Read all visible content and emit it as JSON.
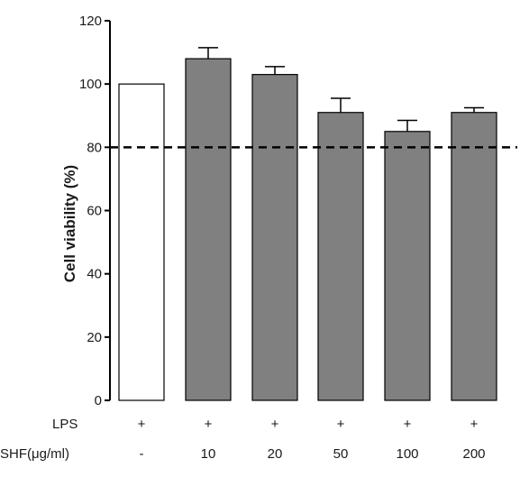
{
  "chart_data": {
    "type": "bar",
    "ylabel": "Cell viability (%)",
    "ylim": [
      0,
      120
    ],
    "yticks": [
      0,
      20,
      40,
      60,
      80,
      100,
      120
    ],
    "reference_line": {
      "y": 80,
      "style": "dashed"
    },
    "rows": [
      {
        "label": "LPS",
        "values": [
          "+",
          "+",
          "+",
          "+",
          "+",
          "+"
        ]
      },
      {
        "label": "SHF(μg/ml)",
        "values": [
          "-",
          "10",
          "20",
          "50",
          "100",
          "200"
        ]
      }
    ],
    "bars": [
      {
        "value": 100,
        "error": 0,
        "fill": "#ffffff"
      },
      {
        "value": 108,
        "error": 3.5,
        "fill": "#808080"
      },
      {
        "value": 103,
        "error": 2.5,
        "fill": "#808080"
      },
      {
        "value": 91,
        "error": 4.5,
        "fill": "#808080"
      },
      {
        "value": 85,
        "error": 3.5,
        "fill": "#808080"
      },
      {
        "value": 91,
        "error": 1.5,
        "fill": "#808080"
      }
    ],
    "grid": false,
    "legend": "none"
  }
}
